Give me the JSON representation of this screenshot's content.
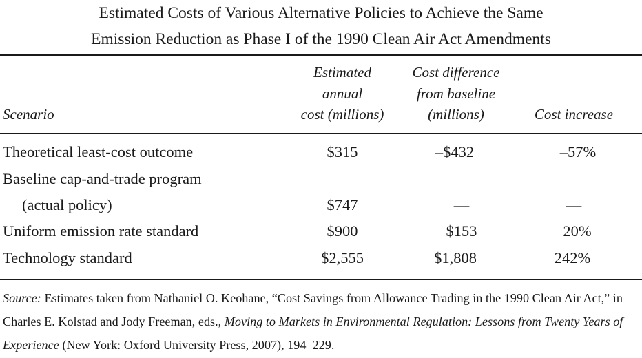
{
  "title": {
    "line1": "Estimated Costs of Various Alternative Policies to Achieve the Same",
    "line2": "Emission Reduction as Phase I of the 1990 Clean Air Act Amendments"
  },
  "headers": {
    "scenario": "Scenario",
    "annual_cost": [
      "Estimated",
      "annual",
      "cost (millions)"
    ],
    "cost_difference": [
      "Cost difference",
      "from baseline",
      "(millions)"
    ],
    "cost_increase": "Cost increase"
  },
  "rows": [
    {
      "scenario": [
        "Theoretical least-cost outcome"
      ],
      "annual_cost": "$315",
      "cost_difference": "–$432",
      "cost_increase": "–57%"
    },
    {
      "scenario": [
        "Baseline cap-and-trade program",
        "(actual policy)"
      ],
      "annual_cost": "$747",
      "cost_difference": "—",
      "cost_increase": "—"
    },
    {
      "scenario": [
        "Uniform emission rate standard"
      ],
      "annual_cost": "$900",
      "cost_difference": "$153",
      "cost_increase": "20%"
    },
    {
      "scenario": [
        "Technology standard"
      ],
      "annual_cost": "$2,555",
      "cost_difference": "$1,808",
      "cost_increase": "242%"
    }
  ],
  "source": {
    "label": "Source:",
    "text1": " Estimates taken from Nathaniel O. Keohane, “Cost Savings from Allowance Trading in the 1990 Clean Air Act,” in Charles E. Kolstad and Jody Freeman, eds., ",
    "book_title": "Moving to Markets in Environmental Regulation: Lessons from Twenty Years of Experience",
    "text2": " (New York: Oxford University Press, 2007), 194–229."
  }
}
